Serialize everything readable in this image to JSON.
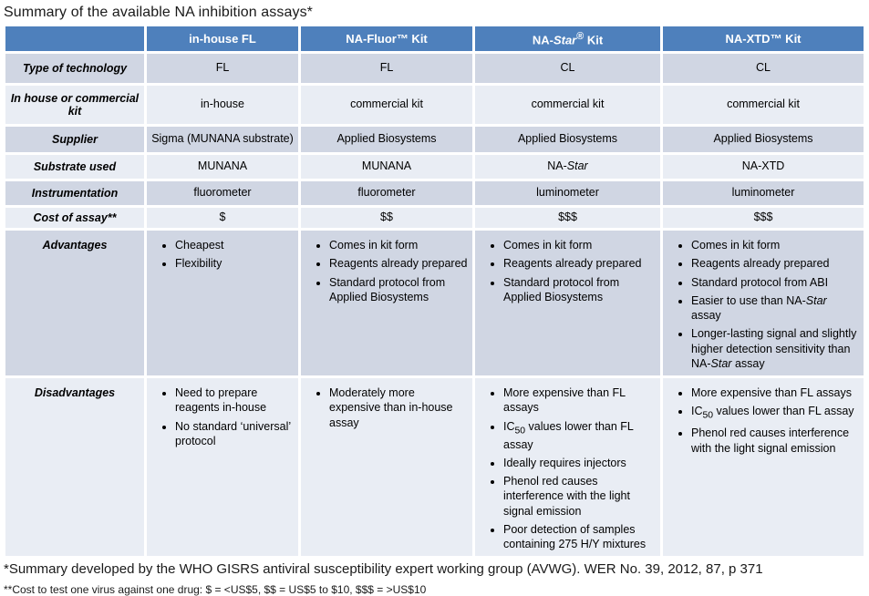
{
  "page": {
    "title": "Summary of the available NA inhibition assays*",
    "footnote1": "*Summary developed by the WHO GISRS antiviral susceptibility expert working group (AVWG). WER No. 39, 2012, 87, p 371",
    "footnote2": "**Cost to test one virus against one drug: $ = <US$5, $$ = US$5 to $10, $$$ = >US$10"
  },
  "colors": {
    "header_bg": "#4e80bc",
    "header_text": "#ffffff",
    "band_dark": "#d0d6e3",
    "band_light": "#e9edf4",
    "gap": "#ffffff"
  },
  "table": {
    "columns": [
      "",
      "in-house FL",
      "NA-Fluor™ Kit",
      "NA-*Star*^®^ Kit",
      "NA-XTD™ Kit"
    ],
    "rows": [
      {
        "label": "Type of technology",
        "values": [
          "FL",
          "FL",
          "CL",
          "CL"
        ]
      },
      {
        "label": "In house or commercial kit",
        "values": [
          "in-house",
          "commercial kit",
          "commercial kit",
          "commercial kit"
        ]
      },
      {
        "label": "Supplier",
        "values": [
          "Sigma (MUNANA substrate)",
          "Applied Biosystems",
          "Applied Biosystems",
          "Applied Biosystems"
        ]
      },
      {
        "label": "Substrate used",
        "values": [
          "MUNANA",
          "MUNANA",
          "NA-*Star*",
          "NA-XTD"
        ]
      },
      {
        "label": "Instrumentation",
        "values": [
          "fluorometer",
          "fluorometer",
          "luminometer",
          "luminometer"
        ]
      },
      {
        "label": "Cost of assay**",
        "values": [
          "$",
          "$$",
          "$$$",
          "$$$"
        ]
      }
    ],
    "list_rows": [
      {
        "key": "adv",
        "label": "Advantages",
        "lists": [
          [
            "Cheapest",
            "Flexibility"
          ],
          [
            "Comes in kit form",
            "Reagents already prepared",
            "Standard protocol from Applied Biosystems"
          ],
          [
            "Comes in kit form",
            "Reagents already prepared",
            "Standard protocol from Applied Biosystems"
          ],
          [
            "Comes in kit form",
            "Reagents already prepared",
            "Standard protocol from ABI",
            "Easier to use than NA-*Star* assay",
            "Longer-lasting signal and slightly higher detection sensitivity than NA-*Star* assay"
          ]
        ]
      },
      {
        "key": "dis",
        "label": "Disadvantages",
        "lists": [
          [
            "Need to prepare reagents in-house",
            "No standard ‘universal’ protocol"
          ],
          [
            "Moderately more expensive than in-house assay"
          ],
          [
            "More expensive than FL assays",
            "IC~50~ values lower than FL assay",
            "Ideally requires injectors",
            "Phenol red causes interference with the light signal emission",
            "Poor detection of samples containing 275 H/Y mixtures"
          ],
          [
            "More expensive than FL assays",
            "IC~50~ values lower than FL assay",
            "Phenol red causes interference with the light signal emission"
          ]
        ]
      }
    ]
  }
}
